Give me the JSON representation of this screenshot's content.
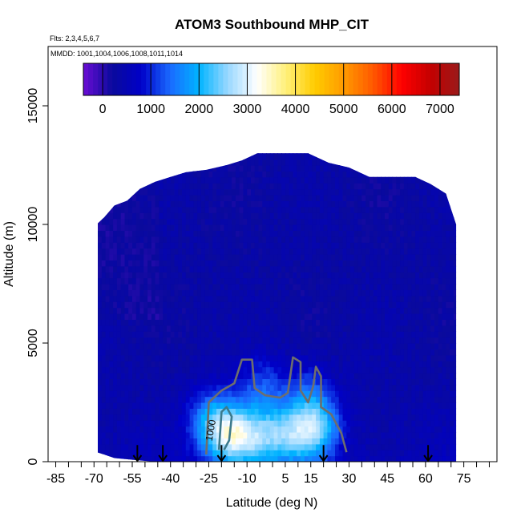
{
  "chart_data": {
    "type": "heatmap",
    "title": "ATOM3 Southbound MHP_CIT",
    "subtitle_flights": "Flts: 2,3,4,5,6,7",
    "subtitle_dates": "MMDD: 1001,1004,1006,1008,1011,1014",
    "xlabel": "Latitude (deg N)",
    "ylabel": "Altitude (m)",
    "xlim": [
      -88,
      88
    ],
    "ylim": [
      0,
      17500
    ],
    "x_ticks": [
      -85,
      -70,
      -55,
      -40,
      -25,
      -10,
      5,
      15,
      30,
      45,
      60,
      75
    ],
    "y_ticks": [
      0,
      5000,
      10000,
      15000
    ],
    "colorbar": {
      "min": -400,
      "max": 7400,
      "ticks": [
        0,
        1000,
        2000,
        3000,
        4000,
        5000,
        6000,
        7000
      ],
      "stops": [
        "#6a0dd4",
        "#0a0a9c",
        "#0000c8",
        "#1a6aff",
        "#00b4ff",
        "#9ad8ff",
        "#ffffff",
        "#fff07a",
        "#ffcc00",
        "#ff9a00",
        "#ff5a00",
        "#ff0000",
        "#c40000",
        "#9a1a1a"
      ]
    },
    "field_envelope": [
      {
        "lat": -69,
        "top": 10000,
        "bottom": 400
      },
      {
        "lat": -66,
        "top": 10300,
        "bottom": 300
      },
      {
        "lat": -62,
        "top": 10800,
        "bottom": 150
      },
      {
        "lat": -57,
        "top": 11000,
        "bottom": 100
      },
      {
        "lat": -52,
        "top": 11500,
        "bottom": 50
      },
      {
        "lat": -46,
        "top": 11800,
        "bottom": 0
      },
      {
        "lat": -40,
        "top": 12000,
        "bottom": 0
      },
      {
        "lat": -34,
        "top": 12200,
        "bottom": 0
      },
      {
        "lat": -26,
        "top": 12300,
        "bottom": 0
      },
      {
        "lat": -18,
        "top": 12500,
        "bottom": 0
      },
      {
        "lat": -12,
        "top": 12700,
        "bottom": 0
      },
      {
        "lat": -6,
        "top": 13000,
        "bottom": 0
      },
      {
        "lat": 0,
        "top": 13000,
        "bottom": 0
      },
      {
        "lat": 8,
        "top": 13000,
        "bottom": 0
      },
      {
        "lat": 14,
        "top": 13000,
        "bottom": 0
      },
      {
        "lat": 22,
        "top": 12600,
        "bottom": 0
      },
      {
        "lat": 30,
        "top": 12400,
        "bottom": 0
      },
      {
        "lat": 38,
        "top": 12000,
        "bottom": 0
      },
      {
        "lat": 44,
        "top": 12000,
        "bottom": 0
      },
      {
        "lat": 50,
        "top": 12000,
        "bottom": 0
      },
      {
        "lat": 56,
        "top": 12000,
        "bottom": 0
      },
      {
        "lat": 62,
        "top": 11700,
        "bottom": 0
      },
      {
        "lat": 68,
        "top": 11300,
        "bottom": 0
      },
      {
        "lat": 72,
        "top": 10000,
        "bottom": 0
      }
    ],
    "hotspots": [
      {
        "lat": -18,
        "alt": 1200,
        "value": 2300
      },
      {
        "lat": -10,
        "alt": 1000,
        "value": 1800
      },
      {
        "lat": 0,
        "alt": 1100,
        "value": 1700
      },
      {
        "lat": 10,
        "alt": 1200,
        "value": 1700
      },
      {
        "lat": 18,
        "alt": 1500,
        "value": 1900
      },
      {
        "lat": -25,
        "alt": 1800,
        "value": 1400
      },
      {
        "lat": -4,
        "alt": 3200,
        "value": 1200
      },
      {
        "lat": 14,
        "alt": 3000,
        "value": 1100
      }
    ],
    "contours": [
      {
        "label": "1000",
        "points": [
          [
            -26,
            300
          ],
          [
            -25,
            2500
          ],
          [
            -20,
            3000
          ],
          [
            -15,
            3300
          ],
          [
            -12,
            4300
          ],
          [
            -8,
            4300
          ],
          [
            -7,
            3100
          ],
          [
            -3,
            2800
          ],
          [
            3,
            2700
          ],
          [
            6,
            2900
          ],
          [
            8,
            4400
          ],
          [
            11,
            4200
          ],
          [
            11,
            3000
          ],
          [
            14,
            2500
          ],
          [
            16,
            3200
          ],
          [
            17,
            4000
          ],
          [
            19,
            3600
          ],
          [
            19,
            2300
          ],
          [
            23,
            2000
          ],
          [
            27,
            1200
          ],
          [
            29,
            400
          ]
        ]
      },
      {
        "label": "",
        "points": [
          [
            -21,
            500
          ],
          [
            -20,
            2100
          ],
          [
            -18,
            2300
          ],
          [
            -16,
            1900
          ],
          [
            -17,
            900
          ],
          [
            -19,
            500
          ]
        ]
      }
    ],
    "flight_markers": [
      {
        "lat": -53,
        "alt": 700
      },
      {
        "lat": -43,
        "alt": 700
      },
      {
        "lat": -20,
        "alt": 700
      },
      {
        "lat": 20,
        "alt": 700
      },
      {
        "lat": 61,
        "alt": 700
      }
    ],
    "grid": false,
    "legend": "top-inset colorbar"
  }
}
